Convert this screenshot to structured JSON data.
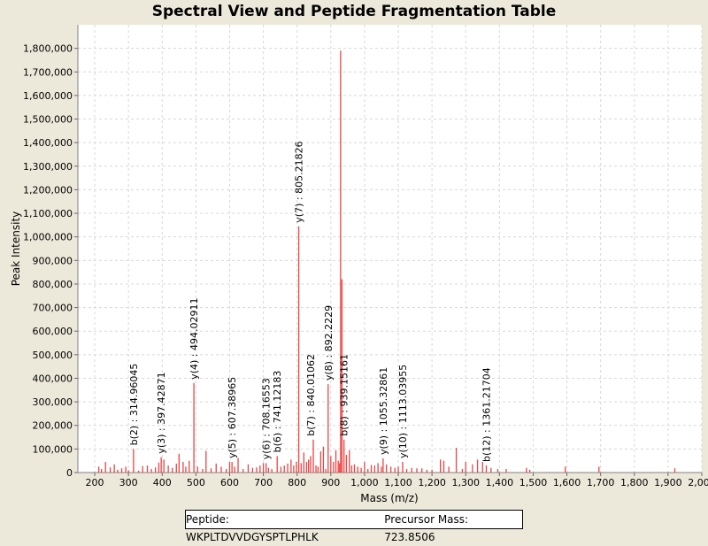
{
  "chart_data": {
    "type": "bar",
    "title": "Spectral View and Peptide Fragmentation Table",
    "xlabel": "Mass (m/z)",
    "ylabel": "Peak Intensity",
    "xlim": [
      150,
      2000
    ],
    "ylim": [
      0,
      1900000
    ],
    "x_ticks": [
      200,
      300,
      400,
      500,
      600,
      700,
      800,
      900,
      1000,
      1100,
      1200,
      1300,
      1400,
      1500,
      1600,
      1700,
      1800,
      1900,
      2000
    ],
    "x_tick_labels": [
      "200",
      "300",
      "400",
      "500",
      "600",
      "700",
      "800",
      "900",
      "1,000",
      "1,100",
      "1,200",
      "1,300",
      "1,400",
      "1,500",
      "1,600",
      "1,700",
      "1,800",
      "1,900",
      "2,000"
    ],
    "y_ticks": [
      0,
      100000,
      200000,
      300000,
      400000,
      500000,
      600000,
      700000,
      800000,
      900000,
      1000000,
      1100000,
      1200000,
      1300000,
      1400000,
      1500000,
      1600000,
      1700000,
      1800000
    ],
    "y_tick_labels": [
      "0",
      "100,000",
      "200,000",
      "300,000",
      "400,000",
      "500,000",
      "600,000",
      "700,000",
      "800,000",
      "900,000",
      "1,000,000",
      "1,100,000",
      "1,200,000",
      "1,300,000",
      "1,400,000",
      "1,500,000",
      "1,600,000",
      "1,700,000",
      "1,800,000"
    ],
    "grid": true,
    "series": [
      {
        "name": "Spectrum peaks",
        "color": "#ee4444",
        "x": [
          212,
          220,
          232,
          246,
          258,
          268,
          280,
          292,
          300,
          315,
          330,
          342,
          356,
          368,
          380,
          390,
          397,
          405,
          418,
          430,
          442,
          450,
          462,
          470,
          480,
          494,
          505,
          520,
          530,
          545,
          560,
          575,
          590,
          600,
          607,
          615,
          625,
          640,
          655,
          668,
          680,
          690,
          700,
          708,
          715,
          725,
          741,
          752,
          762,
          772,
          782,
          790,
          798,
          805,
          812,
          820,
          828,
          834,
          840,
          848,
          856,
          862,
          870,
          878,
          885,
          892,
          900,
          908,
          915,
          922,
          926,
          929,
          933,
          939,
          946,
          955,
          962,
          970,
          980,
          990,
          1000,
          1010,
          1020,
          1030,
          1040,
          1050,
          1055,
          1065,
          1078,
          1090,
          1100,
          1113,
          1125,
          1140,
          1155,
          1170,
          1185,
          1200,
          1225,
          1235,
          1250,
          1272,
          1290,
          1300,
          1320,
          1335,
          1350,
          1361,
          1375,
          1395,
          1420,
          1480,
          1490,
          1595,
          1695,
          1920
        ],
        "values": [
          25000,
          15000,
          45000,
          22000,
          35000,
          12000,
          18000,
          25000,
          10000,
          100000,
          8000,
          28000,
          30000,
          15000,
          22000,
          42000,
          65000,
          55000,
          30000,
          20000,
          38000,
          80000,
          45000,
          25000,
          50000,
          380000,
          25000,
          15000,
          92000,
          18000,
          38000,
          25000,
          15000,
          45000,
          45000,
          25000,
          62000,
          15000,
          35000,
          20000,
          22000,
          30000,
          40000,
          40000,
          20000,
          15000,
          70000,
          25000,
          30000,
          38000,
          55000,
          30000,
          45000,
          1045000,
          40000,
          85000,
          45000,
          55000,
          70000,
          140000,
          30000,
          25000,
          90000,
          110000,
          15000,
          375000,
          70000,
          45000,
          95000,
          50000,
          40000,
          1790000,
          820000,
          140000,
          75000,
          95000,
          30000,
          35000,
          25000,
          20000,
          45000,
          15000,
          32000,
          30000,
          40000,
          25000,
          60000,
          35000,
          25000,
          20000,
          25000,
          45000,
          15000,
          20000,
          18000,
          18000,
          12000,
          12000,
          55000,
          50000,
          25000,
          105000,
          15000,
          45000,
          35000,
          55000,
          45000,
          30000,
          20000,
          15000,
          15000,
          20000,
          12000,
          25000,
          25000,
          18000
        ]
      }
    ],
    "annotations": [
      {
        "label": "b(2) : 314.96045",
        "x": 315,
        "y": 100000
      },
      {
        "label": "y(3) : 397.42871",
        "x": 397,
        "y": 65000
      },
      {
        "label": "y(4) : 494.02911",
        "x": 494,
        "y": 380000
      },
      {
        "label": "y(5) : 607.38965",
        "x": 607,
        "y": 45000
      },
      {
        "label": "y(6) : 708.16553",
        "x": 708,
        "y": 40000
      },
      {
        "label": "b(6) : 741.12183",
        "x": 741,
        "y": 70000
      },
      {
        "label": "y(7) : 805.21826",
        "x": 805,
        "y": 1045000
      },
      {
        "label": "b(7) : 840.01062",
        "x": 840,
        "y": 140000
      },
      {
        "label": "y(8) : 892.2229",
        "x": 892,
        "y": 375000
      },
      {
        "label": "b(8) : 939.15161",
        "x": 939,
        "y": 140000
      },
      {
        "label": "y(9) : 1055.32861",
        "x": 1055,
        "y": 60000
      },
      {
        "label": "y(10) : 1113.03955",
        "x": 1113,
        "y": 45000
      },
      {
        "label": "b(12) : 1361.21704",
        "x": 1361,
        "y": 30000
      }
    ]
  },
  "info": {
    "peptide_label": "Peptide: WKPLTDVVDGYSPTLPHLK",
    "precursor_label": "Precursor Mass: 723.8506"
  }
}
